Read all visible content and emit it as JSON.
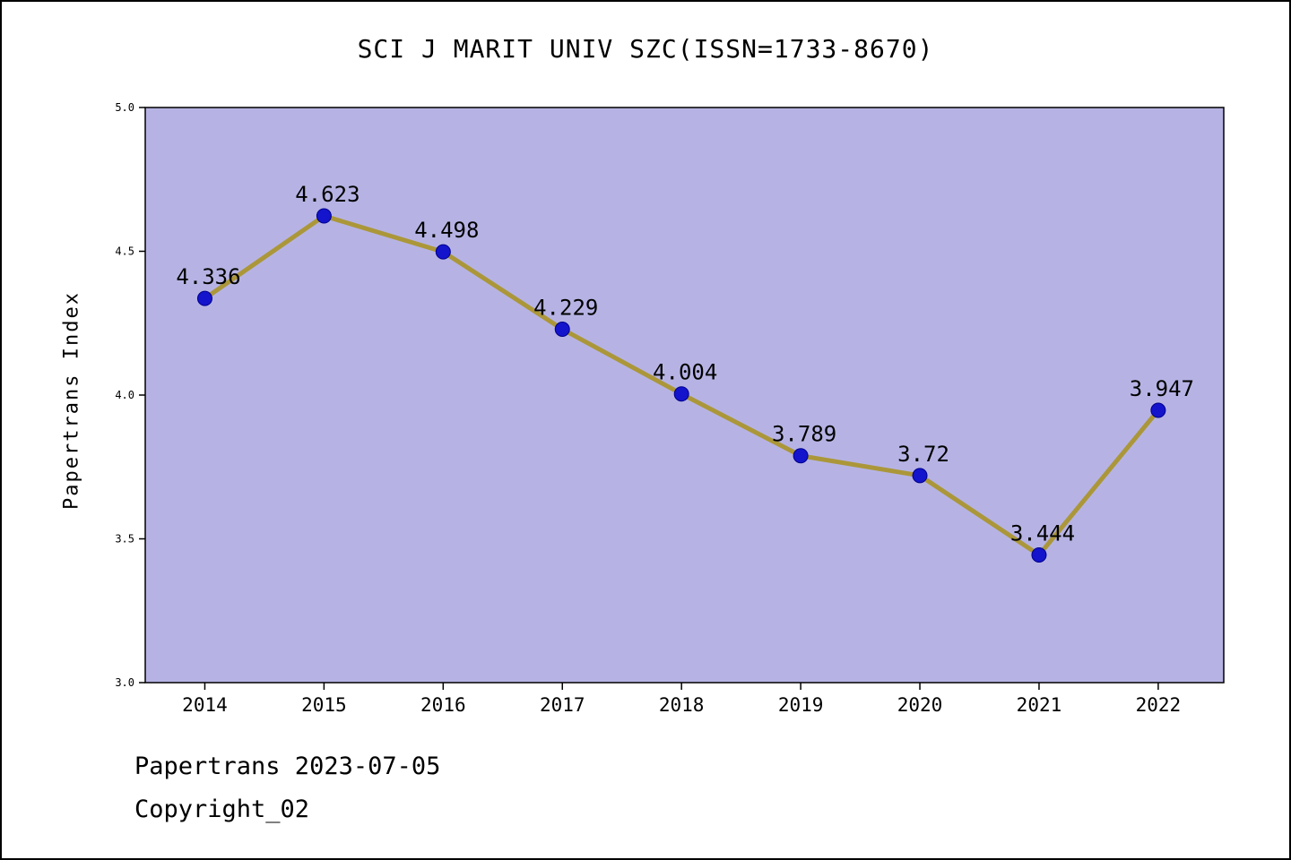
{
  "title": "SCI J MARIT UNIV SZC(ISSN=1733-8670)",
  "footer": {
    "line1": "Papertrans 2023-07-05",
    "line2": "Copyright_02"
  },
  "chart_data": {
    "type": "line",
    "title": "SCI J MARIT UNIV SZC(ISSN=1733-8670)",
    "ylabel": "Papertrans Index",
    "xlabel": "",
    "categories": [
      2014,
      2015,
      2016,
      2017,
      2018,
      2019,
      2020,
      2021,
      2022
    ],
    "values": [
      4.336,
      4.623,
      4.498,
      4.229,
      4.004,
      3.789,
      3.72,
      3.444,
      3.947
    ],
    "point_labels": [
      "4.336",
      "4.623",
      "4.498",
      "4.229",
      "4.004",
      "3.789",
      "3.72",
      "3.444",
      "3.947"
    ],
    "ylim": [
      3.0,
      5.0
    ],
    "xlim": [
      2013.5,
      2022.55
    ],
    "yticks": [
      "3.0",
      "3.5",
      "4.0",
      "4.5",
      "5.0"
    ],
    "xticks": [
      "2014",
      "2015",
      "2016",
      "2017",
      "2018",
      "2019",
      "2020",
      "2021",
      "2022"
    ],
    "grid": false,
    "legend": "none",
    "colors": {
      "plot_bg": "#b6b3e4",
      "line": "#ab9739",
      "marker": "#1414cc",
      "marker_edge": "#00008b",
      "axis": "#000000",
      "text": "#000000"
    }
  }
}
